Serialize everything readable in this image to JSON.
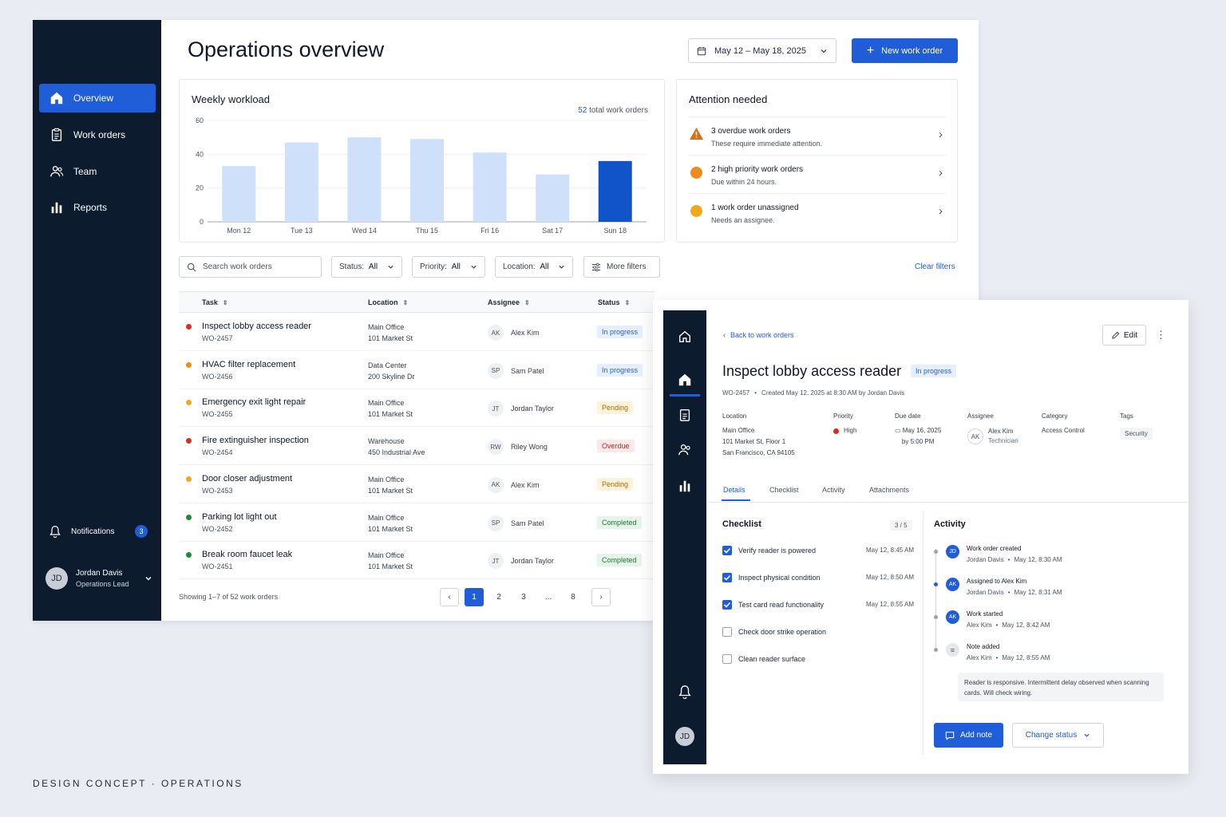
{
  "main": {
    "title": "Operations overview",
    "date_range": "May 12 – May 18, 2025",
    "new_label": "New work order"
  },
  "nav": {
    "items": [
      {
        "label": "Overview"
      },
      {
        "label": "Work orders"
      },
      {
        "label": "Team"
      },
      {
        "label": "Reports"
      }
    ],
    "notifications": "Notifications",
    "notif_count": "3",
    "user": {
      "initials": "JD",
      "name": "Jordan Davis",
      "role": "Operations Lead"
    }
  },
  "workload": {
    "title": "Weekly workload",
    "total_num": "52",
    "total_text": "total work orders"
  },
  "chart_data": {
    "type": "bar",
    "categories": [
      "Mon 12",
      "Tue 13",
      "Wed 14",
      "Thu 15",
      "Fri 16",
      "Sat 17",
      "Sun 18"
    ],
    "values": [
      33,
      47,
      50,
      49,
      41,
      28,
      36
    ],
    "yticks": [
      "0",
      "20",
      "40",
      "60"
    ],
    "ylim": [
      0,
      60
    ],
    "highlight_index": 6,
    "colors": {
      "bar": "#cfe0fb",
      "highlight": "#1153c9"
    }
  },
  "attention": {
    "title": "Attention needed",
    "items": [
      {
        "title": "3 overdue work orders",
        "sub": "These require immediate attention.",
        "color": "#dc6b12"
      },
      {
        "title": "2 high priority work orders",
        "sub": "Due within 24 hours.",
        "color": "#ef8a1f"
      },
      {
        "title": "1 work order unassigned",
        "sub": "Needs an assignee.",
        "color": "#f2a81d"
      }
    ]
  },
  "filters": {
    "search_placeholder": "Search work orders",
    "status": "Status:",
    "status_val": "All",
    "priority": "Priority:",
    "priority_val": "All",
    "location": "Location:",
    "location_val": "All",
    "more": "More filters",
    "clear": "Clear filters"
  },
  "table": {
    "headers": [
      "Task",
      "Location",
      "Assignee",
      "Status"
    ],
    "rows": [
      {
        "task": "Inspect lobby access reader",
        "id": "WO-2457",
        "loc1": "Main Office",
        "loc2": "101 Market St",
        "ini": "AK",
        "name": "Alex Kim",
        "status": "In progress",
        "dot": "#d92d20",
        "sbg": "#e6efff",
        "sfg": "#2d5fd3"
      },
      {
        "task": "HVAC filter replacement",
        "id": "WO-2456",
        "loc1": "Data Center",
        "loc2": "200 Skyline Dr",
        "ini": "SP",
        "name": "Sam Patel",
        "status": "In progress",
        "dot": "#ef8a1f",
        "sbg": "#e6efff",
        "sfg": "#2d5fd3"
      },
      {
        "task": "Emergency exit light repair",
        "id": "WO-2455",
        "loc1": "Main Office",
        "loc2": "101 Market St",
        "ini": "JT",
        "name": "Jordan Taylor",
        "status": "Pending",
        "dot": "#f2a81d",
        "sbg": "#fdf3dc",
        "sfg": "#b26a00"
      },
      {
        "task": "Fire extinguisher inspection",
        "id": "WO-2454",
        "loc1": "Warehouse",
        "loc2": "450 Industrial Ave",
        "ini": "RW",
        "name": "Riley Wong",
        "status": "Overdue",
        "dot": "#d92d20",
        "sbg": "#fde8e8",
        "sfg": "#c62828"
      },
      {
        "task": "Door closer adjustment",
        "id": "WO-2453",
        "loc1": "Main Office",
        "loc2": "101 Market St",
        "ini": "AK",
        "name": "Alex Kim",
        "status": "Pending",
        "dot": "#f2a81d",
        "sbg": "#fdf3dc",
        "sfg": "#b26a00"
      },
      {
        "task": "Parking lot light out",
        "id": "WO-2452",
        "loc1": "Main Office",
        "loc2": "101 Market St",
        "ini": "SP",
        "name": "Sam Patel",
        "status": "Completed",
        "dot": "#1e8a3c",
        "sbg": "#e6f4ea",
        "sfg": "#1e7a36"
      },
      {
        "task": "Break room faucet leak",
        "id": "WO-2451",
        "loc1": "Main Office",
        "loc2": "101 Market St",
        "ini": "JT",
        "name": "Jordan Taylor",
        "status": "Completed",
        "dot": "#1e8a3c",
        "sbg": "#e6f4ea",
        "sfg": "#1e7a36"
      }
    ],
    "showing": "Showing 1–7 of 52 work orders",
    "pages": [
      "1",
      "2",
      "3",
      "...",
      "8"
    ]
  },
  "detail": {
    "back": "Back to work orders",
    "edit": "Edit",
    "title": "Inspect lobby access reader",
    "status": "In progress",
    "id": "WO-2457",
    "created": "Created May 12, 2025 at 8:30 AM by Jordan Davis",
    "meta": {
      "location_l": "Location",
      "location1": "Main Office",
      "location2": "101 Market St, Floor 1",
      "location3": "San Francisco, CA 94105",
      "priority_l": "Priority",
      "priority": "High",
      "due_l": "Due date",
      "due1": "May 16, 2025",
      "due2": "by 5:00 PM",
      "assignee_l": "Assignee",
      "assignee_ini": "AK",
      "assignee": "Alex Kim",
      "assignee_role": "Technician",
      "category_l": "Category",
      "category": "Access Control",
      "tags_l": "Tags",
      "tag": "Security"
    },
    "tabs": [
      "Details",
      "Checklist",
      "Activity",
      "Attachments"
    ],
    "checklist": {
      "title": "Checklist",
      "count": "3 / 5",
      "items": [
        {
          "label": "Verify reader is powered",
          "time": "May 12, 8:45 AM",
          "done": true
        },
        {
          "label": "Inspect physical condition",
          "time": "May 12, 8:50 AM",
          "done": true
        },
        {
          "label": "Test card read functionality",
          "time": "May 12, 8:55 AM",
          "done": true
        },
        {
          "label": "Check door strike operation",
          "time": "",
          "done": false
        },
        {
          "label": "Clean reader surface",
          "time": "",
          "done": false
        }
      ]
    },
    "activity": {
      "title": "Activity",
      "items": [
        {
          "ini": "JD",
          "title": "Work order created",
          "who": "Jordan Davis",
          "time": "May 12, 8:30 AM"
        },
        {
          "ini": "AK",
          "title": "Assigned to Alex Kim",
          "who": "Jordan Davis",
          "time": "May 12, 8:31 AM"
        },
        {
          "ini": "AK",
          "title": "Work started",
          "who": "Alex Kim",
          "time": "May 12, 8:42 AM"
        },
        {
          "ini": "",
          "title": "Note added",
          "who": "Alex Kim",
          "time": "May 12, 8:55 AM"
        }
      ],
      "note": "Reader is responsive. Intermittent delay observed when scanning cards. Will check wiring."
    },
    "add_note": "Add note",
    "change_status": "Change status",
    "user_initials": "JD"
  },
  "footer": "DESIGN CONCEPT · OPERATIONS"
}
